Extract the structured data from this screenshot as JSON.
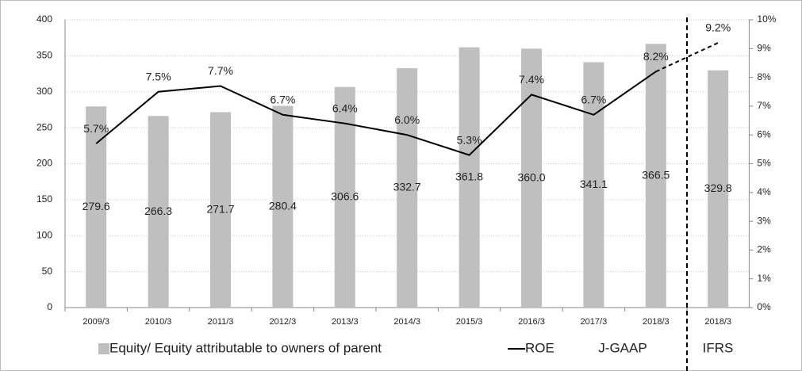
{
  "chart_data": {
    "type": "bar-line",
    "categories": [
      "2009/3",
      "2010/3",
      "2011/3",
      "2012/3",
      "2013/3",
      "2014/3",
      "2015/3",
      "2016/3",
      "2017/3",
      "2018/3",
      "2018/3"
    ],
    "series": [
      {
        "name": "Equity/ Equity attributable to owners of parent",
        "type": "bar",
        "color": "#bfbfbf",
        "values": [
          279.6,
          266.3,
          271.7,
          280.4,
          306.6,
          332.7,
          361.8,
          360.0,
          341.1,
          366.5,
          329.8
        ],
        "value_labels": [
          "279.6",
          "266.3",
          "271.7",
          "280.4",
          "306.6",
          "332.7",
          "361.8",
          "360.0",
          "341.1",
          "366.5",
          "329.8"
        ]
      },
      {
        "name": "ROE",
        "type": "line",
        "axis": "y2",
        "color": "#000000",
        "values": [
          5.7,
          7.5,
          7.7,
          6.7,
          6.4,
          6.0,
          5.3,
          7.4,
          6.7,
          8.2,
          9.2
        ],
        "value_labels": [
          "5.7%",
          "7.5%",
          "7.7%",
          "6.7%",
          "6.4%",
          "6.0%",
          "5.3%",
          "7.4%",
          "6.7%",
          "8.2%",
          "9.2%"
        ],
        "dashed_segments": [
          9
        ]
      }
    ],
    "ylim": [
      0,
      400
    ],
    "yticks": [
      0,
      50,
      100,
      150,
      200,
      250,
      300,
      350,
      400
    ],
    "y2lim": [
      0,
      10
    ],
    "y2ticks": [
      {
        "value": 0,
        "label": "0%"
      },
      {
        "value": 1,
        "label": "1%"
      },
      {
        "value": 2,
        "label": "2%"
      },
      {
        "value": 3,
        "label": "3%"
      },
      {
        "value": 4,
        "label": "4%"
      },
      {
        "value": 5,
        "label": "5%"
      },
      {
        "value": 6,
        "label": "6%"
      },
      {
        "value": 7,
        "label": "7%"
      },
      {
        "value": 8,
        "label": "8%"
      },
      {
        "value": 9,
        "label": "9%"
      },
      {
        "value": 10,
        "label": "10%"
      }
    ],
    "grid": true,
    "annotations": [
      "J-GAAP",
      "IFRS"
    ]
  }
}
